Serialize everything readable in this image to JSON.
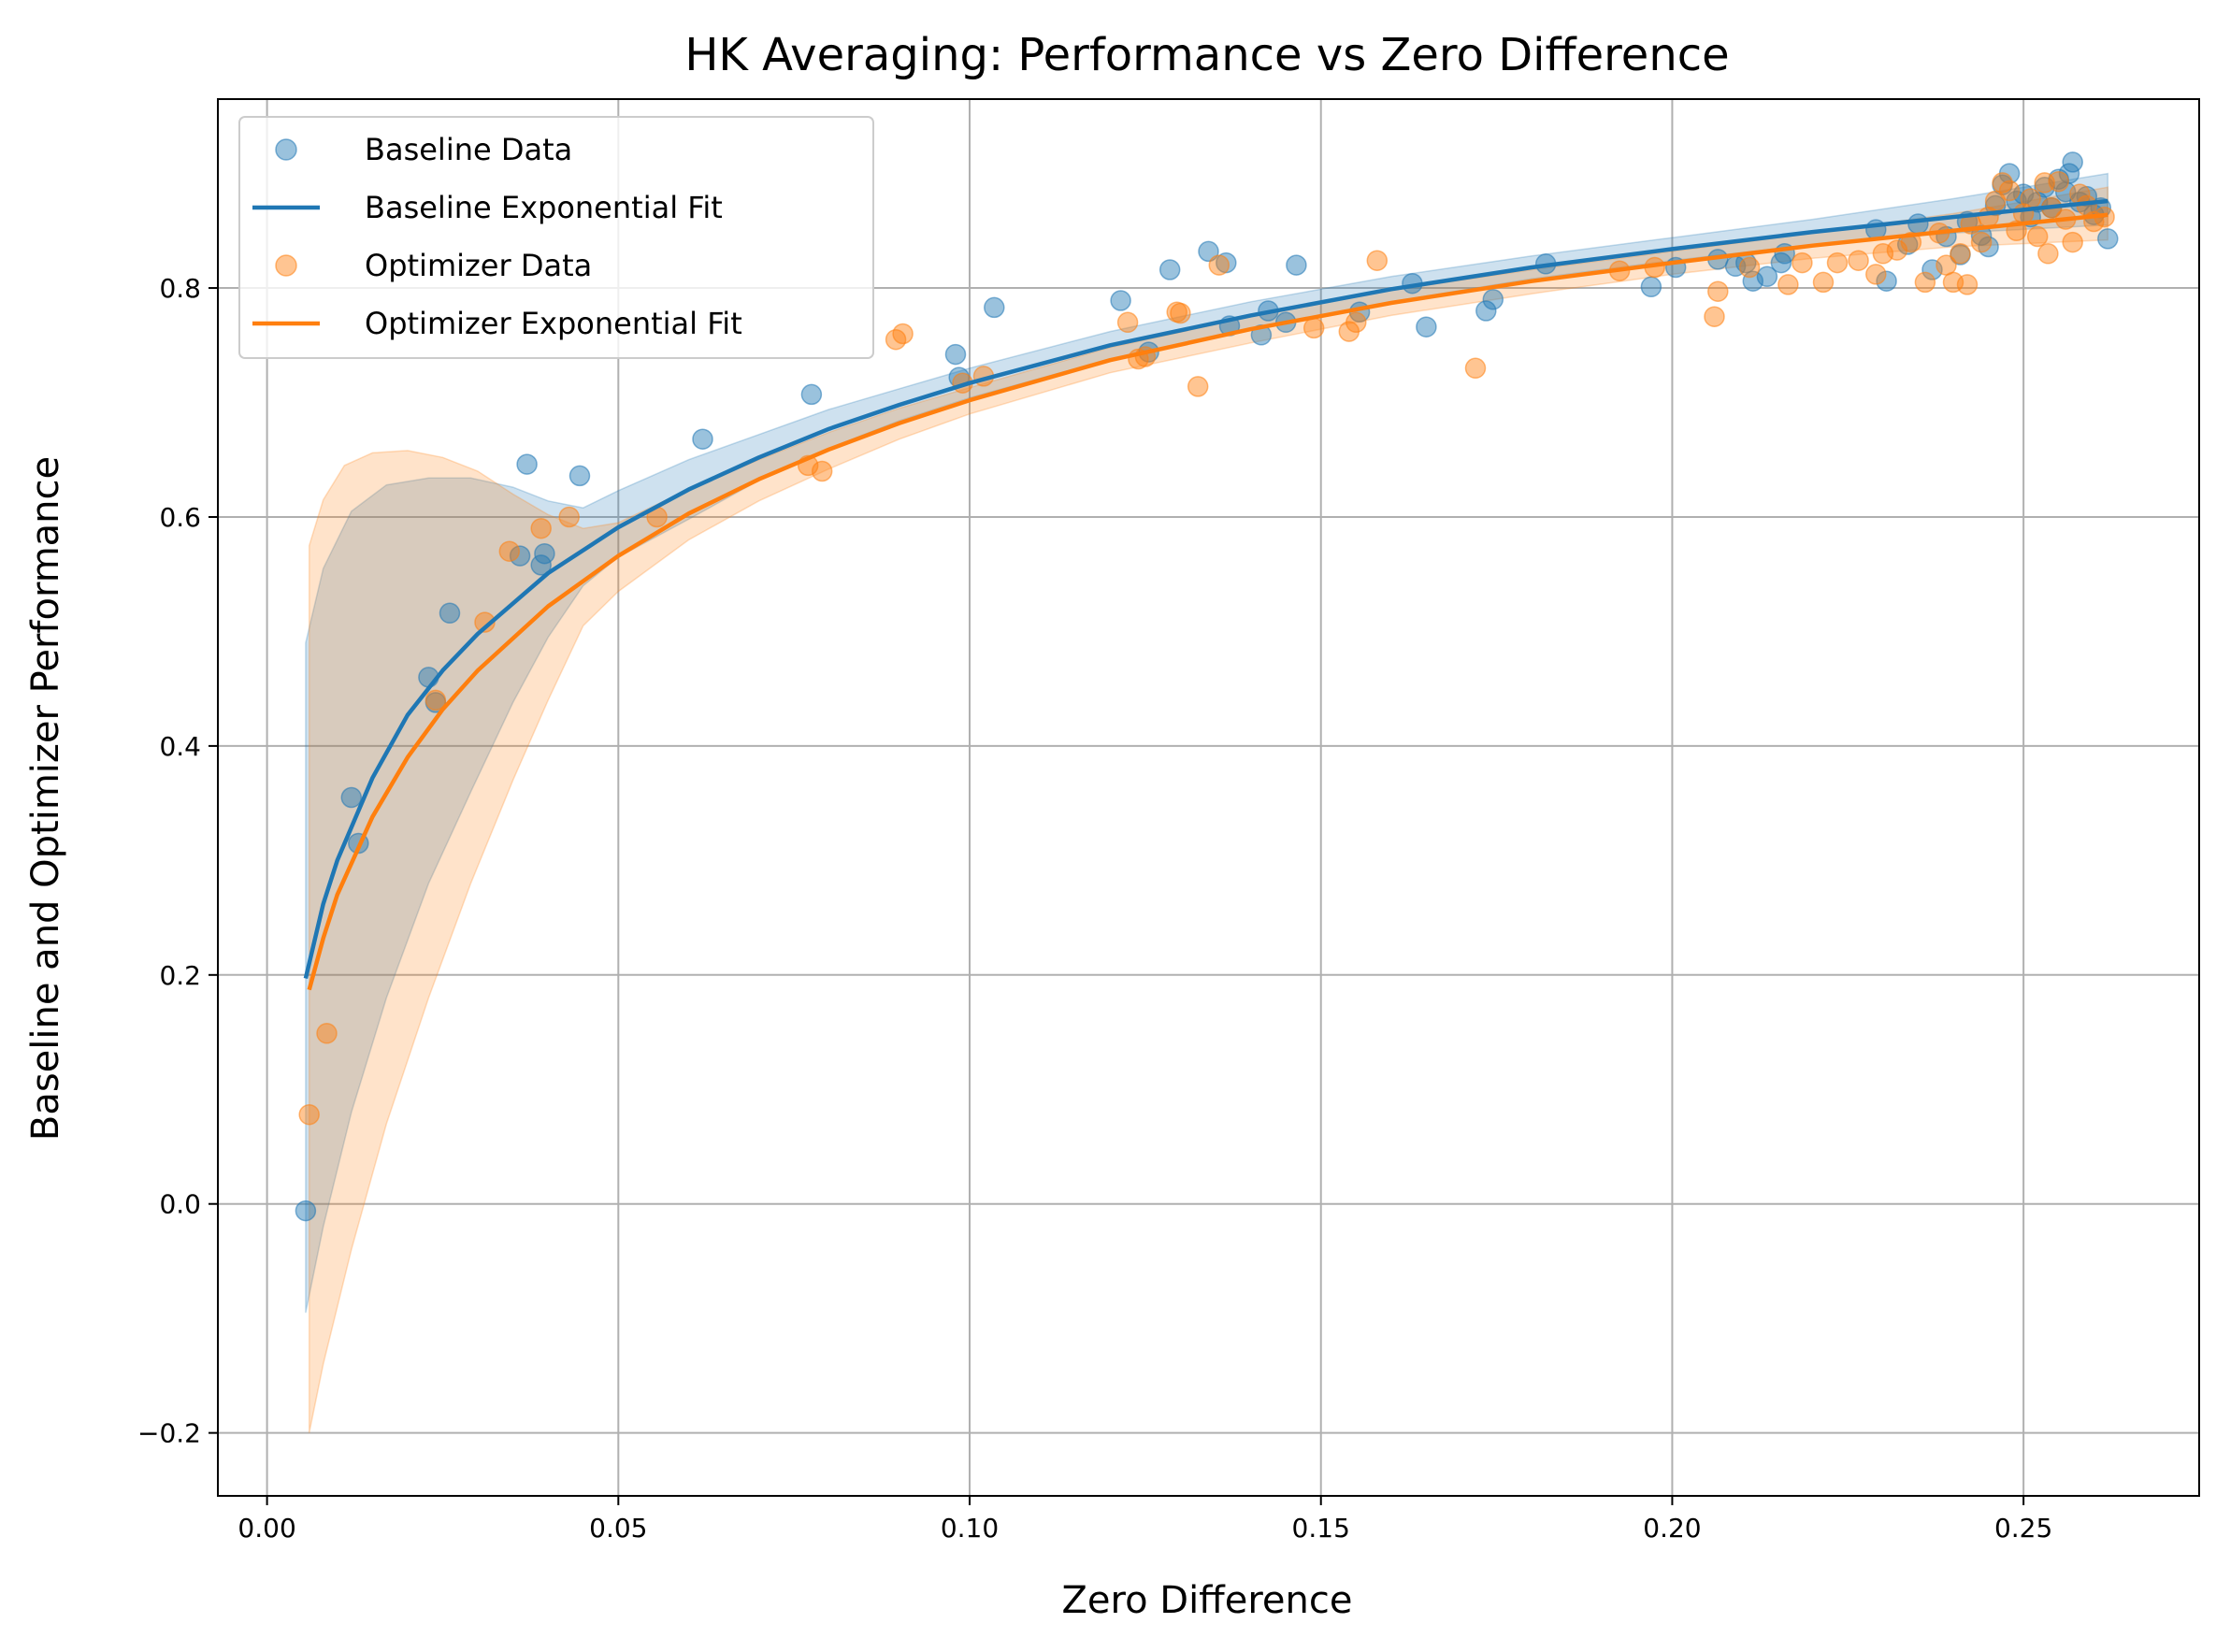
{
  "chart_data": {
    "type": "scatter",
    "title": "HK Averaging: Performance vs Zero Difference",
    "xlabel": "Zero Difference",
    "ylabel": "Baseline and Optimizer Performance",
    "xlim": [
      -0.007,
      0.275
    ],
    "ylim": [
      -0.255,
      0.965
    ],
    "xticks": [
      0.0,
      0.05,
      0.1,
      0.15,
      0.2,
      0.25
    ],
    "xtick_labels": [
      "0.00",
      "0.05",
      "0.10",
      "0.15",
      "0.20",
      "0.25"
    ],
    "yticks": [
      -0.2,
      0.0,
      0.2,
      0.4,
      0.6,
      0.8
    ],
    "ytick_labels": [
      "−0.2",
      "0.0",
      "0.2",
      "0.4",
      "0.6",
      "0.8"
    ],
    "grid": true,
    "legend_position": "upper-left",
    "colors": {
      "baseline": "#1f77b4",
      "optimizer": "#ff7f0e"
    },
    "series": [
      {
        "name": "Baseline Data",
        "kind": "scatter",
        "color": "#1f77b4",
        "points": [
          [
            0.0055,
            -0.006
          ],
          [
            0.012,
            0.355
          ],
          [
            0.013,
            0.315
          ],
          [
            0.023,
            0.46
          ],
          [
            0.024,
            0.438
          ],
          [
            0.026,
            0.516
          ],
          [
            0.036,
            0.566
          ],
          [
            0.037,
            0.646
          ],
          [
            0.039,
            0.558
          ],
          [
            0.0395,
            0.568
          ],
          [
            0.0445,
            0.636
          ],
          [
            0.062,
            0.668
          ],
          [
            0.0775,
            0.707
          ],
          [
            0.098,
            0.742
          ],
          [
            0.0985,
            0.722
          ],
          [
            0.1035,
            0.783
          ],
          [
            0.1215,
            0.789
          ],
          [
            0.1255,
            0.744
          ],
          [
            0.1285,
            0.816
          ],
          [
            0.134,
            0.832
          ],
          [
            0.1365,
            0.822
          ],
          [
            0.137,
            0.767
          ],
          [
            0.1415,
            0.759
          ],
          [
            0.1425,
            0.78
          ],
          [
            0.145,
            0.77
          ],
          [
            0.1465,
            0.82
          ],
          [
            0.1555,
            0.779
          ],
          [
            0.163,
            0.804
          ],
          [
            0.165,
            0.766
          ],
          [
            0.1735,
            0.78
          ],
          [
            0.1745,
            0.79
          ],
          [
            0.182,
            0.821
          ],
          [
            0.197,
            0.801
          ],
          [
            0.2005,
            0.818
          ],
          [
            0.2065,
            0.825
          ],
          [
            0.209,
            0.819
          ],
          [
            0.2105,
            0.822
          ],
          [
            0.2115,
            0.806
          ],
          [
            0.2135,
            0.81
          ],
          [
            0.2155,
            0.822
          ],
          [
            0.216,
            0.83
          ],
          [
            0.229,
            0.851
          ],
          [
            0.2305,
            0.806
          ],
          [
            0.2335,
            0.838
          ],
          [
            0.235,
            0.856
          ],
          [
            0.237,
            0.816
          ],
          [
            0.239,
            0.845
          ],
          [
            0.241,
            0.829
          ],
          [
            0.242,
            0.858
          ],
          [
            0.244,
            0.846
          ],
          [
            0.245,
            0.836
          ],
          [
            0.246,
            0.872
          ],
          [
            0.247,
            0.89
          ],
          [
            0.248,
            0.9
          ],
          [
            0.249,
            0.876
          ],
          [
            0.25,
            0.882
          ],
          [
            0.251,
            0.862
          ],
          [
            0.252,
            0.875
          ],
          [
            0.253,
            0.888
          ],
          [
            0.254,
            0.87
          ],
          [
            0.255,
            0.895
          ],
          [
            0.256,
            0.884
          ],
          [
            0.2565,
            0.9
          ],
          [
            0.257,
            0.91
          ],
          [
            0.258,
            0.875
          ],
          [
            0.259,
            0.88
          ],
          [
            0.26,
            0.864
          ],
          [
            0.261,
            0.87
          ],
          [
            0.262,
            0.843
          ]
        ]
      },
      {
        "name": "Baseline Exponential Fit",
        "kind": "line",
        "color": "#1f77b4",
        "points": [
          [
            0.0055,
            0.197
          ],
          [
            0.008,
            0.262
          ],
          [
            0.01,
            0.3
          ],
          [
            0.015,
            0.372
          ],
          [
            0.02,
            0.427
          ],
          [
            0.025,
            0.466
          ],
          [
            0.03,
            0.498
          ],
          [
            0.04,
            0.551
          ],
          [
            0.05,
            0.591
          ],
          [
            0.06,
            0.624
          ],
          [
            0.07,
            0.652
          ],
          [
            0.08,
            0.677
          ],
          [
            0.09,
            0.698
          ],
          [
            0.1,
            0.717
          ],
          [
            0.12,
            0.75
          ],
          [
            0.14,
            0.776
          ],
          [
            0.16,
            0.799
          ],
          [
            0.18,
            0.818
          ],
          [
            0.2,
            0.834
          ],
          [
            0.22,
            0.849
          ],
          [
            0.24,
            0.862
          ],
          [
            0.262,
            0.876
          ]
        ],
        "band_upper": [
          [
            0.0055,
            0.49
          ],
          [
            0.008,
            0.555
          ],
          [
            0.012,
            0.605
          ],
          [
            0.017,
            0.628
          ],
          [
            0.023,
            0.634
          ],
          [
            0.029,
            0.634
          ],
          [
            0.035,
            0.626
          ],
          [
            0.04,
            0.614
          ],
          [
            0.045,
            0.608
          ],
          [
            0.05,
            0.623
          ],
          [
            0.06,
            0.65
          ],
          [
            0.07,
            0.672
          ],
          [
            0.08,
            0.694
          ],
          [
            0.09,
            0.712
          ],
          [
            0.1,
            0.73
          ],
          [
            0.12,
            0.762
          ],
          [
            0.14,
            0.788
          ],
          [
            0.16,
            0.81
          ],
          [
            0.18,
            0.828
          ],
          [
            0.2,
            0.844
          ],
          [
            0.22,
            0.86
          ],
          [
            0.24,
            0.878
          ],
          [
            0.262,
            0.9
          ]
        ],
        "band_lower": [
          [
            0.0055,
            -0.095
          ],
          [
            0.008,
            -0.02
          ],
          [
            0.012,
            0.08
          ],
          [
            0.017,
            0.18
          ],
          [
            0.023,
            0.28
          ],
          [
            0.029,
            0.36
          ],
          [
            0.035,
            0.438
          ],
          [
            0.04,
            0.495
          ],
          [
            0.045,
            0.54
          ],
          [
            0.05,
            0.565
          ],
          [
            0.06,
            0.598
          ],
          [
            0.07,
            0.632
          ],
          [
            0.08,
            0.66
          ],
          [
            0.09,
            0.684
          ],
          [
            0.1,
            0.704
          ],
          [
            0.12,
            0.738
          ],
          [
            0.14,
            0.764
          ],
          [
            0.16,
            0.788
          ],
          [
            0.18,
            0.808
          ],
          [
            0.2,
            0.824
          ],
          [
            0.22,
            0.838
          ],
          [
            0.24,
            0.848
          ],
          [
            0.262,
            0.855
          ]
        ]
      },
      {
        "name": "Optimizer Data",
        "kind": "scatter",
        "color": "#ff7f0e",
        "points": [
          [
            0.006,
            0.078
          ],
          [
            0.0085,
            0.149
          ],
          [
            0.024,
            0.44
          ],
          [
            0.031,
            0.508
          ],
          [
            0.0345,
            0.57
          ],
          [
            0.039,
            0.59
          ],
          [
            0.043,
            0.6
          ],
          [
            0.0555,
            0.6
          ],
          [
            0.077,
            0.645
          ],
          [
            0.079,
            0.64
          ],
          [
            0.0895,
            0.755
          ],
          [
            0.0905,
            0.76
          ],
          [
            0.099,
            0.717
          ],
          [
            0.102,
            0.723
          ],
          [
            0.1225,
            0.77
          ],
          [
            0.124,
            0.738
          ],
          [
            0.125,
            0.74
          ],
          [
            0.1295,
            0.779
          ],
          [
            0.13,
            0.778
          ],
          [
            0.1325,
            0.714
          ],
          [
            0.1355,
            0.82
          ],
          [
            0.149,
            0.765
          ],
          [
            0.154,
            0.762
          ],
          [
            0.155,
            0.77
          ],
          [
            0.158,
            0.824
          ],
          [
            0.172,
            0.73
          ],
          [
            0.1925,
            0.815
          ],
          [
            0.1975,
            0.818
          ],
          [
            0.206,
            0.775
          ],
          [
            0.2065,
            0.797
          ],
          [
            0.211,
            0.818
          ],
          [
            0.2165,
            0.803
          ],
          [
            0.2185,
            0.822
          ],
          [
            0.2215,
            0.805
          ],
          [
            0.2235,
            0.822
          ],
          [
            0.2265,
            0.824
          ],
          [
            0.229,
            0.812
          ],
          [
            0.23,
            0.83
          ],
          [
            0.232,
            0.833
          ],
          [
            0.234,
            0.84
          ],
          [
            0.236,
            0.805
          ],
          [
            0.238,
            0.848
          ],
          [
            0.239,
            0.82
          ],
          [
            0.24,
            0.805
          ],
          [
            0.241,
            0.83
          ],
          [
            0.242,
            0.803
          ],
          [
            0.2425,
            0.856
          ],
          [
            0.244,
            0.84
          ],
          [
            0.245,
            0.862
          ],
          [
            0.246,
            0.876
          ],
          [
            0.247,
            0.892
          ],
          [
            0.248,
            0.885
          ],
          [
            0.249,
            0.85
          ],
          [
            0.25,
            0.865
          ],
          [
            0.251,
            0.878
          ],
          [
            0.252,
            0.845
          ],
          [
            0.253,
            0.892
          ],
          [
            0.2535,
            0.83
          ],
          [
            0.254,
            0.87
          ],
          [
            0.255,
            0.893
          ],
          [
            0.256,
            0.86
          ],
          [
            0.257,
            0.84
          ],
          [
            0.258,
            0.882
          ],
          [
            0.259,
            0.872
          ],
          [
            0.26,
            0.858
          ],
          [
            0.2615,
            0.862
          ]
        ]
      },
      {
        "name": "Optimizer Exponential Fit",
        "kind": "line",
        "color": "#ff7f0e",
        "points": [
          [
            0.006,
            0.187
          ],
          [
            0.008,
            0.232
          ],
          [
            0.01,
            0.27
          ],
          [
            0.015,
            0.338
          ],
          [
            0.02,
            0.39
          ],
          [
            0.025,
            0.432
          ],
          [
            0.03,
            0.466
          ],
          [
            0.04,
            0.522
          ],
          [
            0.05,
            0.566
          ],
          [
            0.06,
            0.603
          ],
          [
            0.07,
            0.633
          ],
          [
            0.08,
            0.659
          ],
          [
            0.09,
            0.682
          ],
          [
            0.1,
            0.702
          ],
          [
            0.12,
            0.737
          ],
          [
            0.14,
            0.764
          ],
          [
            0.16,
            0.787
          ],
          [
            0.18,
            0.806
          ],
          [
            0.2,
            0.822
          ],
          [
            0.22,
            0.837
          ],
          [
            0.24,
            0.85
          ],
          [
            0.262,
            0.864
          ]
        ],
        "band_upper": [
          [
            0.006,
            0.575
          ],
          [
            0.008,
            0.615
          ],
          [
            0.011,
            0.645
          ],
          [
            0.015,
            0.656
          ],
          [
            0.02,
            0.658
          ],
          [
            0.025,
            0.652
          ],
          [
            0.03,
            0.64
          ],
          [
            0.035,
            0.62
          ],
          [
            0.04,
            0.602
          ],
          [
            0.045,
            0.59
          ],
          [
            0.05,
            0.595
          ],
          [
            0.06,
            0.624
          ],
          [
            0.07,
            0.65
          ],
          [
            0.08,
            0.674
          ],
          [
            0.09,
            0.695
          ],
          [
            0.1,
            0.713
          ],
          [
            0.12,
            0.748
          ],
          [
            0.14,
            0.775
          ],
          [
            0.16,
            0.798
          ],
          [
            0.18,
            0.816
          ],
          [
            0.2,
            0.832
          ],
          [
            0.22,
            0.848
          ],
          [
            0.24,
            0.865
          ],
          [
            0.262,
            0.888
          ]
        ],
        "band_lower": [
          [
            0.006,
            -0.2
          ],
          [
            0.008,
            -0.14
          ],
          [
            0.012,
            -0.04
          ],
          [
            0.017,
            0.07
          ],
          [
            0.023,
            0.18
          ],
          [
            0.029,
            0.28
          ],
          [
            0.035,
            0.37
          ],
          [
            0.04,
            0.44
          ],
          [
            0.045,
            0.505
          ],
          [
            0.05,
            0.535
          ],
          [
            0.06,
            0.58
          ],
          [
            0.07,
            0.614
          ],
          [
            0.08,
            0.642
          ],
          [
            0.09,
            0.668
          ],
          [
            0.1,
            0.69
          ],
          [
            0.12,
            0.726
          ],
          [
            0.14,
            0.752
          ],
          [
            0.16,
            0.776
          ],
          [
            0.18,
            0.795
          ],
          [
            0.2,
            0.812
          ],
          [
            0.22,
            0.826
          ],
          [
            0.24,
            0.836
          ],
          [
            0.262,
            0.842
          ]
        ]
      }
    ],
    "legend": [
      {
        "label": "Baseline Data",
        "kind": "marker",
        "color": "#1f77b4"
      },
      {
        "label": "Baseline Exponential Fit",
        "kind": "line",
        "color": "#1f77b4"
      },
      {
        "label": "Optimizer Data",
        "kind": "marker",
        "color": "#ff7f0e"
      },
      {
        "label": "Optimizer Exponential Fit",
        "kind": "line",
        "color": "#ff7f0e"
      }
    ]
  }
}
